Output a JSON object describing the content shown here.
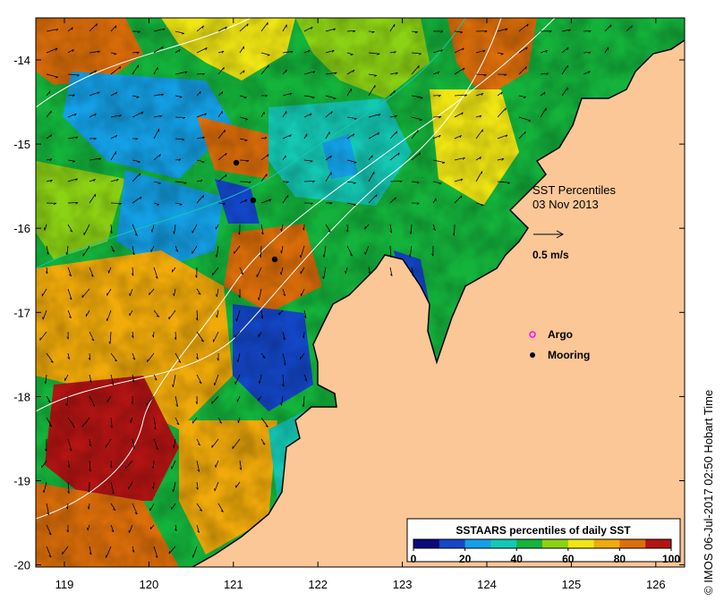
{
  "title": {
    "line1": "SST Percentiles",
    "line2": "03 Nov 2013"
  },
  "axes": {
    "x_ticks": [
      "119",
      "120",
      "121",
      "122",
      "123",
      "124",
      "125",
      "126"
    ],
    "y_ticks": [
      "-14",
      "-15",
      "-16",
      "-17",
      "-18",
      "-19",
      "-20"
    ]
  },
  "scale_arrow": {
    "label": "0.5 m/s"
  },
  "legend": {
    "argo_label": "Argo",
    "mooring_label": "Mooring",
    "argo_color": "#ff00ff",
    "mooring_color": "#000000"
  },
  "colorbar": {
    "title": "SSTAARS percentiles of daily SST",
    "tick_labels": [
      "0",
      "20",
      "40",
      "60",
      "80",
      "100"
    ],
    "colors": [
      "#0a0a78",
      "#1446c8",
      "#14a0e6",
      "#14c8b4",
      "#14b43c",
      "#8cd214",
      "#f0e614",
      "#f0aa0a",
      "#dc6e0a",
      "#b41414"
    ]
  },
  "land_color": "#fbc797",
  "credit": "© IMOS 06-Jul-2017 02:50 Hobart Time"
}
